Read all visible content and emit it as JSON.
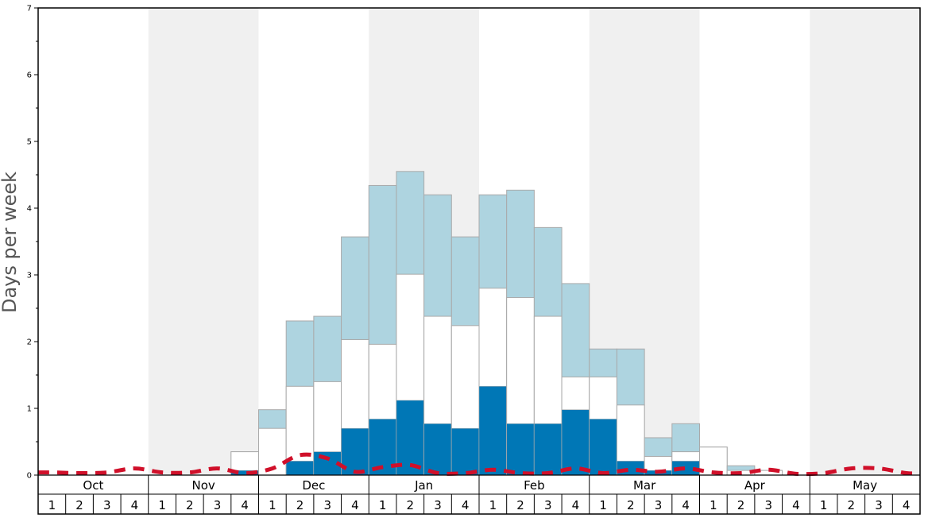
{
  "chart_data": {
    "type": "bar",
    "ylabel": "Days per week",
    "ylim": [
      0,
      7
    ],
    "y_ticks": [
      0,
      1,
      2,
      3,
      4,
      5,
      6,
      7
    ],
    "months": [
      "Oct",
      "Nov",
      "Dec",
      "Jan",
      "Feb",
      "Mar",
      "Apr",
      "May"
    ],
    "week_labels": [
      "1",
      "2",
      "3",
      "4"
    ],
    "colors": {
      "band_shade": "#f0f0f0",
      "top_layer": "#aed4e0",
      "middle_layer": "#ffffff",
      "bottom_layer": "#0077b6",
      "bar_stroke": "#aaaaaa",
      "dashed_line": "#d0102a"
    },
    "stacked_totals_note": "each bar shows three nested layers (cumulative heights, days per week)",
    "bars": [
      {
        "month": "Oct",
        "week": "1",
        "top": 0,
        "middle": 0,
        "bottom": 0
      },
      {
        "month": "Oct",
        "week": "2",
        "top": 0,
        "middle": 0,
        "bottom": 0
      },
      {
        "month": "Oct",
        "week": "3",
        "top": 0,
        "middle": 0,
        "bottom": 0
      },
      {
        "month": "Oct",
        "week": "4",
        "top": 0,
        "middle": 0,
        "bottom": 0
      },
      {
        "month": "Nov",
        "week": "1",
        "top": 0,
        "middle": 0,
        "bottom": 0
      },
      {
        "month": "Nov",
        "week": "2",
        "top": 0,
        "middle": 0,
        "bottom": 0
      },
      {
        "month": "Nov",
        "week": "3",
        "top": 0,
        "middle": 0,
        "bottom": 0
      },
      {
        "month": "Nov",
        "week": "4",
        "top": 0.35,
        "middle": 0.35,
        "bottom": 0.07
      },
      {
        "month": "Dec",
        "week": "1",
        "top": 0.98,
        "middle": 0.7,
        "bottom": 0
      },
      {
        "month": "Dec",
        "week": "2",
        "top": 2.31,
        "middle": 1.33,
        "bottom": 0.21
      },
      {
        "month": "Dec",
        "week": "3",
        "top": 2.38,
        "middle": 1.4,
        "bottom": 0.35
      },
      {
        "month": "Dec",
        "week": "4",
        "top": 3.57,
        "middle": 2.03,
        "bottom": 0.7
      },
      {
        "month": "Jan",
        "week": "1",
        "top": 4.34,
        "middle": 1.96,
        "bottom": 0.84
      },
      {
        "month": "Jan",
        "week": "2",
        "top": 4.55,
        "middle": 3.01,
        "bottom": 1.12
      },
      {
        "month": "Jan",
        "week": "3",
        "top": 4.2,
        "middle": 2.38,
        "bottom": 0.77
      },
      {
        "month": "Jan",
        "week": "4",
        "top": 3.57,
        "middle": 2.24,
        "bottom": 0.7
      },
      {
        "month": "Feb",
        "week": "1",
        "top": 4.2,
        "middle": 2.8,
        "bottom": 1.33
      },
      {
        "month": "Feb",
        "week": "2",
        "top": 4.27,
        "middle": 2.66,
        "bottom": 0.77
      },
      {
        "month": "Feb",
        "week": "3",
        "top": 3.71,
        "middle": 2.38,
        "bottom": 0.77
      },
      {
        "month": "Feb",
        "week": "4",
        "top": 2.87,
        "middle": 1.47,
        "bottom": 0.98
      },
      {
        "month": "Mar",
        "week": "1",
        "top": 1.89,
        "middle": 1.47,
        "bottom": 0.84
      },
      {
        "month": "Mar",
        "week": "2",
        "top": 1.89,
        "middle": 1.05,
        "bottom": 0.21
      },
      {
        "month": "Mar",
        "week": "3",
        "top": 0.56,
        "middle": 0.28,
        "bottom": 0.07
      },
      {
        "month": "Mar",
        "week": "4",
        "top": 0.77,
        "middle": 0.35,
        "bottom": 0.21
      },
      {
        "month": "Apr",
        "week": "1",
        "top": 0.42,
        "middle": 0.42,
        "bottom": 0
      },
      {
        "month": "Apr",
        "week": "2",
        "top": 0.14,
        "middle": 0.07,
        "bottom": 0
      },
      {
        "month": "Apr",
        "week": "3",
        "top": 0.07,
        "middle": 0.07,
        "bottom": 0
      },
      {
        "month": "Apr",
        "week": "4",
        "top": 0,
        "middle": 0,
        "bottom": 0
      },
      {
        "month": "May",
        "week": "1",
        "top": 0,
        "middle": 0,
        "bottom": 0
      },
      {
        "month": "May",
        "week": "2",
        "top": 0,
        "middle": 0,
        "bottom": 0
      },
      {
        "month": "May",
        "week": "3",
        "top": 0,
        "middle": 0,
        "bottom": 0
      },
      {
        "month": "May",
        "week": "4",
        "top": 0,
        "middle": 0,
        "bottom": 0
      }
    ],
    "dashed_line_values": [
      0.04,
      0.03,
      0.04,
      0.1,
      0.04,
      0.04,
      0.1,
      0.03,
      0.1,
      0.3,
      0.25,
      0.05,
      0.12,
      0.15,
      0.03,
      0.03,
      0.08,
      0.03,
      0.03,
      0.1,
      0.03,
      0.08,
      0.05,
      0.1,
      0.04,
      0.03,
      0.08,
      0.02,
      0.03,
      0.1,
      0.1,
      0.03
    ]
  }
}
